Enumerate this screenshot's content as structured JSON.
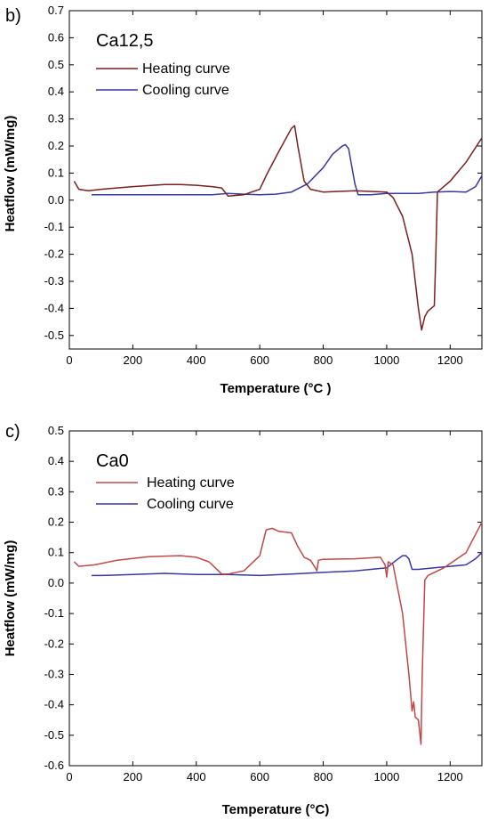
{
  "chart_data": [
    {
      "panel_label": "b)",
      "type": "line",
      "sample_label": "Ca12,5",
      "xlabel": "Temperature (°C )",
      "ylabel": "Heatflow (mW/mg)",
      "xlim": [
        0,
        1300
      ],
      "ylim": [
        -0.55,
        0.7
      ],
      "xticks": [
        0,
        200,
        400,
        600,
        800,
        1000,
        1200
      ],
      "yticks": [
        0.7,
        0.6,
        0.5,
        0.4,
        0.3,
        0.2,
        0.1,
        0.0,
        -0.1,
        -0.2,
        -0.3,
        -0.4,
        -0.5
      ],
      "ytick_labels": [
        "0.7",
        "0.6",
        "0.5",
        "0.4",
        "0.3",
        "0.2",
        "0.1",
        "0.0",
        "-0.1",
        "-0.2",
        "-0.3",
        "-0.4",
        "-0.5"
      ],
      "grid": false,
      "legend_position": "top-left",
      "series": [
        {
          "name": "Heating curve",
          "color": "#7a2020",
          "x": [
            15,
            30,
            60,
            100,
            200,
            300,
            350,
            400,
            450,
            480,
            500,
            550,
            600,
            620,
            660,
            700,
            710,
            720,
            740,
            760,
            800,
            900,
            1000,
            1020,
            1050,
            1080,
            1100,
            1110,
            1120,
            1130,
            1150,
            1155,
            1160,
            1170,
            1200,
            1250,
            1300
          ],
          "y": [
            0.07,
            0.04,
            0.035,
            0.04,
            0.05,
            0.058,
            0.058,
            0.055,
            0.05,
            0.045,
            0.015,
            0.02,
            0.04,
            0.09,
            0.18,
            0.265,
            0.275,
            0.2,
            0.07,
            0.04,
            0.03,
            0.035,
            0.03,
            0.01,
            -0.06,
            -0.2,
            -0.4,
            -0.48,
            -0.43,
            -0.41,
            -0.39,
            -0.2,
            0.03,
            0.04,
            0.07,
            0.14,
            0.23
          ]
        },
        {
          "name": "Cooling curve",
          "color": "#3838a0",
          "x": [
            70,
            100,
            200,
            300,
            400,
            450,
            500,
            550,
            600,
            650,
            700,
            750,
            800,
            830,
            860,
            870,
            880,
            900,
            910,
            950,
            1000,
            1050,
            1100,
            1150,
            1200,
            1250,
            1280,
            1300
          ],
          "y": [
            0.02,
            0.02,
            0.02,
            0.02,
            0.02,
            0.02,
            0.025,
            0.022,
            0.02,
            0.022,
            0.03,
            0.06,
            0.12,
            0.17,
            0.2,
            0.205,
            0.19,
            0.06,
            0.02,
            0.02,
            0.025,
            0.025,
            0.025,
            0.03,
            0.032,
            0.03,
            0.05,
            0.09
          ]
        }
      ]
    },
    {
      "panel_label": "c)",
      "type": "line",
      "sample_label": "Ca0",
      "xlabel": "Temperature (°C)",
      "ylabel": "Heatflow (mW/mg)",
      "xlim": [
        0,
        1300
      ],
      "ylim": [
        -0.6,
        0.5
      ],
      "xticks": [
        0,
        200,
        400,
        600,
        800,
        1000,
        1200
      ],
      "yticks": [
        0.5,
        0.4,
        0.3,
        0.2,
        0.1,
        0.0,
        -0.1,
        -0.2,
        -0.3,
        -0.4,
        -0.5,
        -0.6
      ],
      "ytick_labels": [
        "0.5",
        "0.4",
        "0.3",
        "0.2",
        "0.1",
        "0.0",
        "-0.1",
        "-0.2",
        "-0.3",
        "-0.4",
        "-0.5",
        "-0.6"
      ],
      "grid": false,
      "legend_position": "top-left",
      "series": [
        {
          "name": "Heating curve",
          "color": "#c04848",
          "x": [
            15,
            30,
            80,
            150,
            250,
            350,
            400,
            440,
            460,
            480,
            500,
            550,
            600,
            620,
            640,
            660,
            700,
            720,
            740,
            760,
            775,
            780,
            785,
            800,
            900,
            980,
            995,
            1000,
            1005,
            1020,
            1050,
            1070,
            1080,
            1085,
            1090,
            1100,
            1108,
            1112,
            1120,
            1130,
            1180,
            1250,
            1300
          ],
          "y": [
            0.07,
            0.055,
            0.06,
            0.075,
            0.087,
            0.09,
            0.085,
            0.07,
            0.05,
            0.03,
            0.03,
            0.04,
            0.09,
            0.175,
            0.18,
            0.17,
            0.165,
            0.12,
            0.085,
            0.075,
            0.05,
            0.04,
            0.075,
            0.078,
            0.08,
            0.085,
            0.06,
            0.02,
            0.07,
            0.06,
            -0.1,
            -0.3,
            -0.42,
            -0.39,
            -0.44,
            -0.45,
            -0.53,
            -0.3,
            0.01,
            0.025,
            0.05,
            0.1,
            0.2
          ]
        },
        {
          "name": "Cooling curve",
          "color": "#3838a0",
          "x": [
            70,
            100,
            200,
            300,
            400,
            500,
            600,
            700,
            800,
            900,
            950,
            1000,
            1030,
            1050,
            1060,
            1070,
            1080,
            1100,
            1150,
            1200,
            1250,
            1280,
            1300
          ],
          "y": [
            0.025,
            0.025,
            0.028,
            0.032,
            0.028,
            0.028,
            0.025,
            0.03,
            0.035,
            0.04,
            0.045,
            0.05,
            0.075,
            0.09,
            0.09,
            0.08,
            0.045,
            0.045,
            0.05,
            0.055,
            0.06,
            0.08,
            0.1
          ]
        }
      ]
    }
  ]
}
